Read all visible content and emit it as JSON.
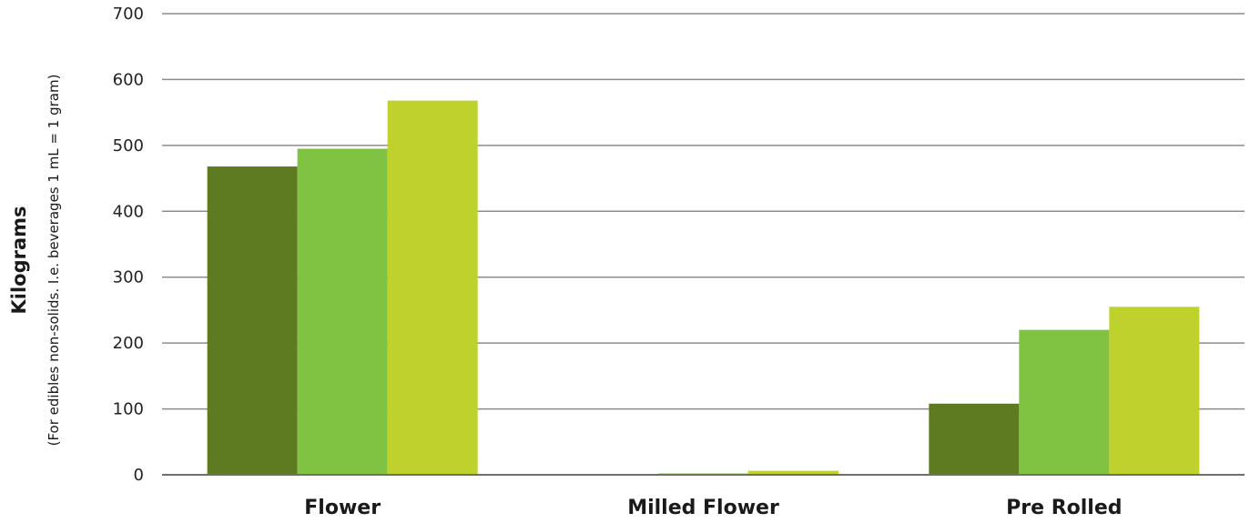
{
  "chart_data": {
    "type": "bar",
    "categories": [
      "Flower",
      "Milled Flower",
      "Pre Rolled"
    ],
    "series": [
      {
        "values": [
          468,
          1,
          108
        ],
        "color": "#5f7b22"
      },
      {
        "values": [
          495,
          2,
          220
        ],
        "color": "#80c242"
      },
      {
        "values": [
          568,
          6,
          255
        ],
        "color": "#bfd12c"
      }
    ],
    "ylim": [
      0,
      700
    ],
    "yticks": [
      0,
      100,
      200,
      300,
      400,
      500,
      600,
      700
    ],
    "ylabel": "Kilograms",
    "ylabel_sub": "(For edibles non-solids. I.e. beverages 1 mL = 1 gram)",
    "grid": true,
    "legend": "none"
  }
}
